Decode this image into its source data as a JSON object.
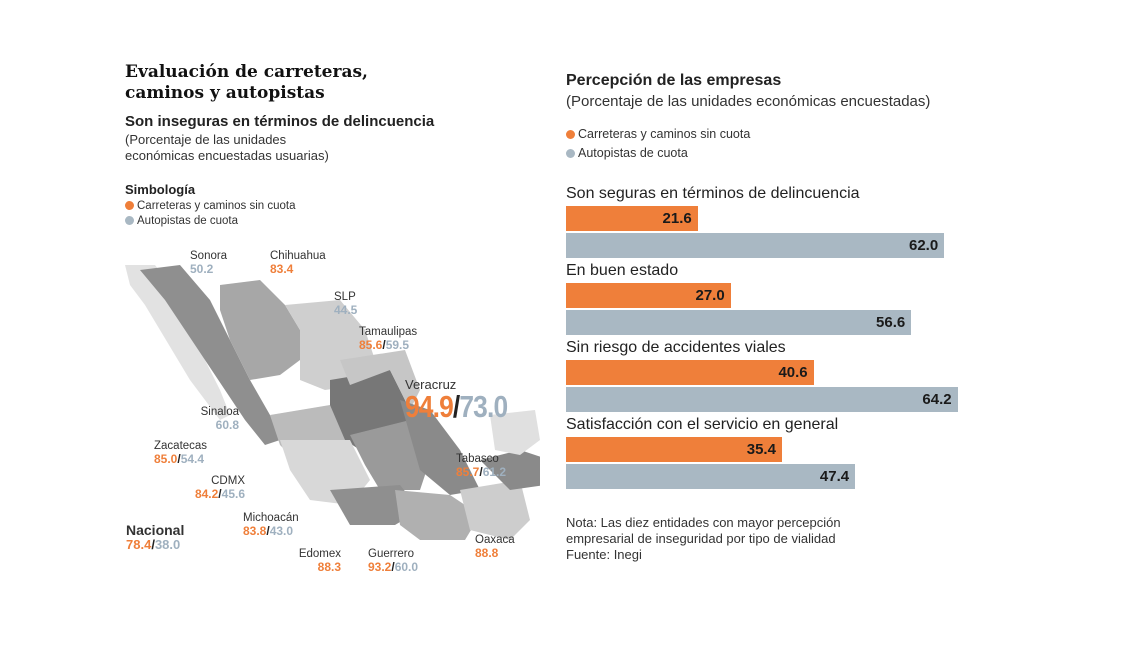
{
  "colors": {
    "orange": "#ef7f3a",
    "gray": "#a9b8c3"
  },
  "left": {
    "title_line1": "Evaluación de carreteras,",
    "title_line2": "caminos y autopistas",
    "subtitle": "Son inseguras en términos de delincuencia",
    "note_line1": "(Porcentaje de las unidades",
    "note_line2": "económicas encuestadas usuarias)",
    "legend_title": "Simbología",
    "legend": [
      "Carreteras y caminos sin cuota",
      "Autopistas de cuota"
    ],
    "states": {
      "sonora": {
        "name": "Sonora",
        "gray": "50.2"
      },
      "chihuahua": {
        "name": "Chihuahua",
        "orange": "83.4"
      },
      "slp": {
        "name": "SLP",
        "gray": "44.5"
      },
      "tamaulipas": {
        "name": "Tamaulipas",
        "orange": "85.6",
        "gray": "59.5"
      },
      "veracruz": {
        "name": "Veracruz",
        "orange": "94.9",
        "gray": "73.0"
      },
      "sinaloa": {
        "name": "Sinaloa",
        "gray": "60.8"
      },
      "zacatecas": {
        "name": "Zacatecas",
        "orange": "85.0",
        "gray": "54.4"
      },
      "cdmx": {
        "name": "CDMX",
        "orange": "84.2",
        "gray": "45.6"
      },
      "michoacan": {
        "name": "Michoacán",
        "orange": "83.8",
        "gray": "43.0"
      },
      "nacional": {
        "name": "Nacional",
        "orange": "78.4",
        "gray": "38.0"
      },
      "edomex": {
        "name": "Edomex",
        "orange": "88.3"
      },
      "guerrero": {
        "name": "Guerrero",
        "orange": "93.2",
        "gray": "60.0"
      },
      "tabasco": {
        "name": "Tabasco",
        "orange": "85.7",
        "gray": "61.2"
      },
      "oaxaca": {
        "name": "Oaxaca",
        "orange": "88.8"
      }
    }
  },
  "chart_data": {
    "type": "bar",
    "orientation": "horizontal",
    "title": "Percepción de las empresas",
    "subtitle": "(Porcentaje de las unidades económicas encuestadas)",
    "categories": [
      "Son seguras en términos de delincuencia",
      "En buen estado",
      "Sin riesgo de accidentes viales",
      "Satisfacción con el servicio en general"
    ],
    "series": [
      {
        "name": "Carreteras y caminos sin cuota",
        "color": "#ef7f3a",
        "values": [
          21.6,
          27.0,
          40.6,
          35.4
        ]
      },
      {
        "name": "Autopistas de cuota",
        "color": "#a9b8c3",
        "values": [
          62.0,
          56.6,
          64.2,
          47.4
        ]
      }
    ],
    "value_labels": [
      [
        "21.6",
        "27.0",
        "40.6",
        "35.4"
      ],
      [
        "62.0",
        "56.6",
        "64.2",
        "47.4"
      ]
    ],
    "legend": "top-left",
    "grid": false
  },
  "footer": {
    "note_line1": "Nota: Las diez entidades con mayor percepción",
    "note_line2": "empresarial de inseguridad por tipo de vialidad",
    "source": "Fuente: Inegi"
  }
}
